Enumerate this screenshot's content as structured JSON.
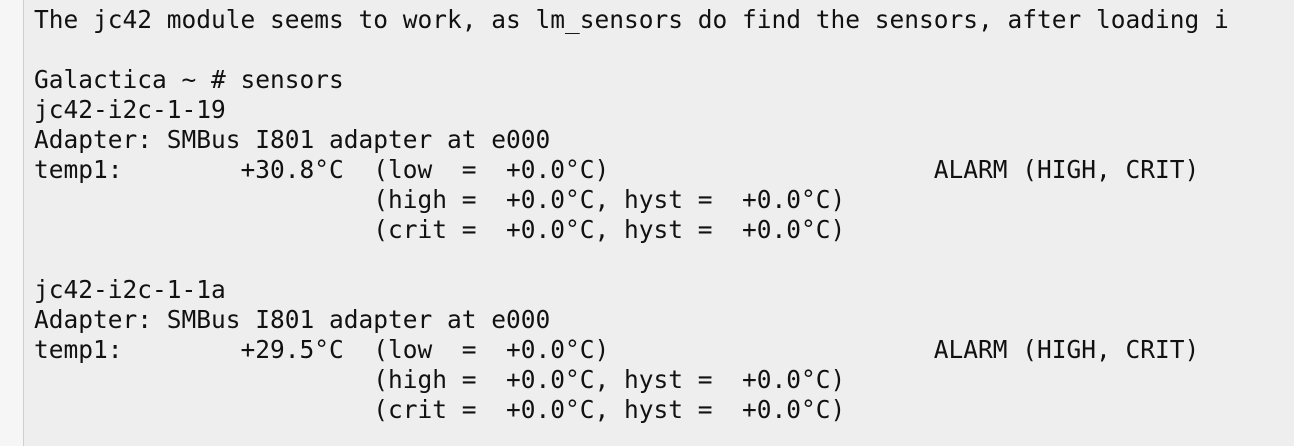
{
  "post": {
    "intro": "The jc42 module seems to work, as lm_sensors do find the sensors, after loading i"
  },
  "terminal": {
    "lines": [
      "",
      "Galactica ~ # sensors",
      "jc42-i2c-1-19",
      "Adapter: SMBus I801 adapter at e000",
      "temp1:        +30.8°C  (low  =  +0.0°C)                      ALARM (HIGH, CRIT)",
      "                       (high =  +0.0°C, hyst =  +0.0°C)",
      "                       (crit =  +0.0°C, hyst =  +0.0°C)",
      "",
      "jc42-i2c-1-1a",
      "Adapter: SMBus I801 adapter at e000",
      "temp1:        +29.5°C  (low  =  +0.0°C)                      ALARM (HIGH, CRIT)",
      "                       (high =  +0.0°C, hyst =  +0.0°C)",
      "                       (crit =  +0.0°C, hyst =  +0.0°C)",
      ""
    ]
  }
}
